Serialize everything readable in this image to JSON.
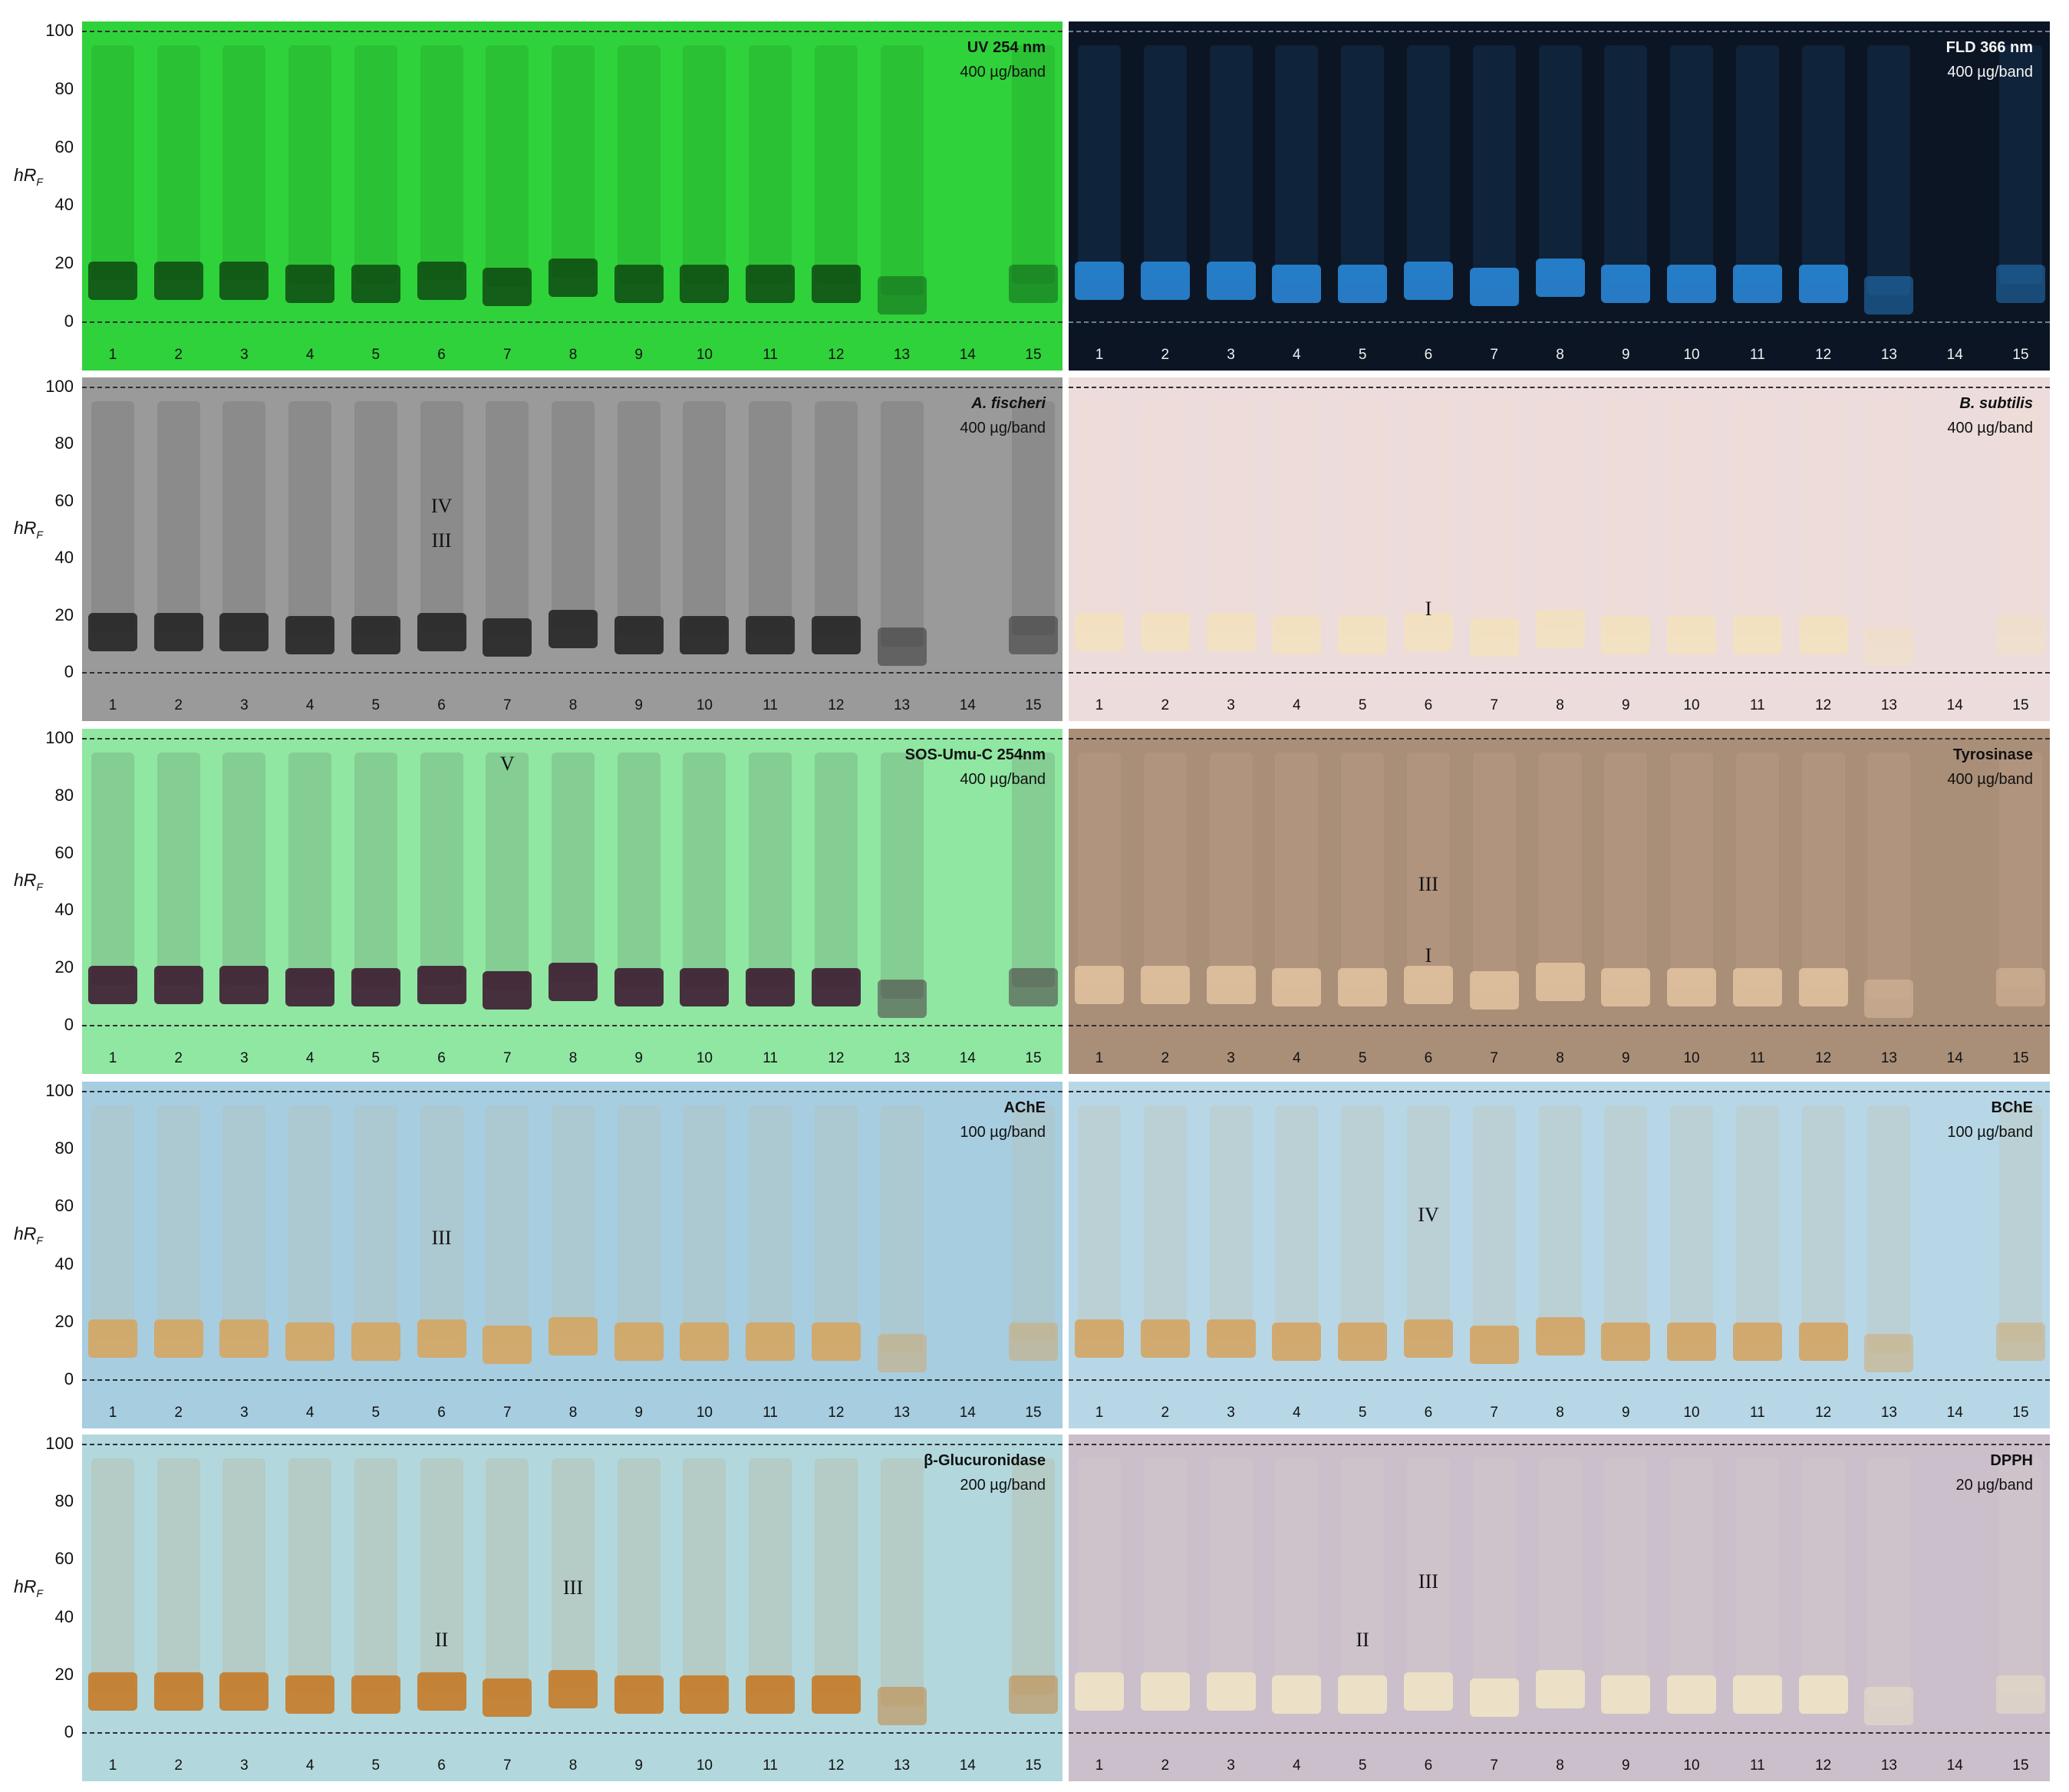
{
  "axis": {
    "ticks": [
      "100",
      "80",
      "60",
      "40",
      "20",
      "0"
    ],
    "label_main": "hR",
    "label_sub": "F"
  },
  "lanes": [
    "1",
    "2",
    "3",
    "4",
    "5",
    "6",
    "7",
    "8",
    "9",
    "10",
    "11",
    "12",
    "13",
    "14",
    "15"
  ],
  "panels": [
    {
      "id": "uv254",
      "title": "UV 254 nm",
      "subtitle": "400 µg/band",
      "colors": {
        "bg": "#2fd23a",
        "band": "#0e4a13"
      },
      "dark": false,
      "markers": []
    },
    {
      "id": "fld366",
      "title": "FLD 366 nm",
      "subtitle": "400 µg/band",
      "colors": {
        "bg": "#0c1524",
        "band": "#2b8de0"
      },
      "dark": true,
      "markers": []
    },
    {
      "id": "afischeri",
      "title": "A. fischeri",
      "subtitle": "400 µg/band",
      "colors": {
        "bg": "#9a9a9a",
        "band": "#1e1e1e"
      },
      "dark": false,
      "markers": [
        {
          "label": "IV",
          "lane": 6,
          "rf": 58
        },
        {
          "label": "III",
          "lane": 6,
          "rf": 46
        }
      ]
    },
    {
      "id": "bsubtilis",
      "title": "B. subtilis",
      "subtitle": "400 µg/band",
      "colors": {
        "bg": "#ecdcdc",
        "band": "#f3e2bd"
      },
      "dark": false,
      "markers": [
        {
          "label": "I",
          "lane": 6,
          "rf": 22
        }
      ]
    },
    {
      "id": "sosumuc",
      "title": "SOS-Umu-C 254nm",
      "subtitle": "400 µg/band",
      "colors": {
        "bg": "#8fe7a2",
        "band": "#3a0f2b"
      },
      "dark": false,
      "markers": [
        {
          "label": "V",
          "lane": 7,
          "rf": 91
        }
      ]
    },
    {
      "id": "tyrosinase",
      "title": "Tyrosinase",
      "subtitle": "400 µg/band",
      "colors": {
        "bg": "#a98e78",
        "band": "#e3c4a1"
      },
      "dark": false,
      "markers": [
        {
          "label": "III",
          "lane": 6,
          "rf": 49
        },
        {
          "label": "I",
          "lane": 6,
          "rf": 24
        }
      ]
    },
    {
      "id": "ache",
      "title": "AChE",
      "subtitle": "100 µg/band",
      "colors": {
        "bg": "#a7cde1",
        "band": "#d7a35a"
      },
      "dark": false,
      "markers": [
        {
          "label": "III",
          "lane": 6,
          "rf": 49
        }
      ]
    },
    {
      "id": "bche",
      "title": "BChE",
      "subtitle": "100 µg/band",
      "colors": {
        "bg": "#b7d7e6",
        "band": "#d6a25c"
      },
      "dark": false,
      "markers": [
        {
          "label": "IV",
          "lane": 6,
          "rf": 57
        }
      ]
    },
    {
      "id": "bglucuronidase",
      "title": "β-Glucuronidase",
      "subtitle": "200 µg/band",
      "colors": {
        "bg": "#b2d8dd",
        "band": "#c7761d"
      },
      "dark": false,
      "markers": [
        {
          "label": "III",
          "lane": 8,
          "rf": 50
        },
        {
          "label": "II",
          "lane": 6,
          "rf": 32
        }
      ]
    },
    {
      "id": "dpph",
      "title": "DPPH",
      "subtitle": "20 µg/band",
      "colors": {
        "bg": "#cbbfcc",
        "band": "#f2e6c4"
      },
      "dark": false,
      "markers": [
        {
          "label": "III",
          "lane": 6,
          "rf": 52
        },
        {
          "label": "II",
          "lane": 5,
          "rf": 32
        }
      ]
    }
  ]
}
